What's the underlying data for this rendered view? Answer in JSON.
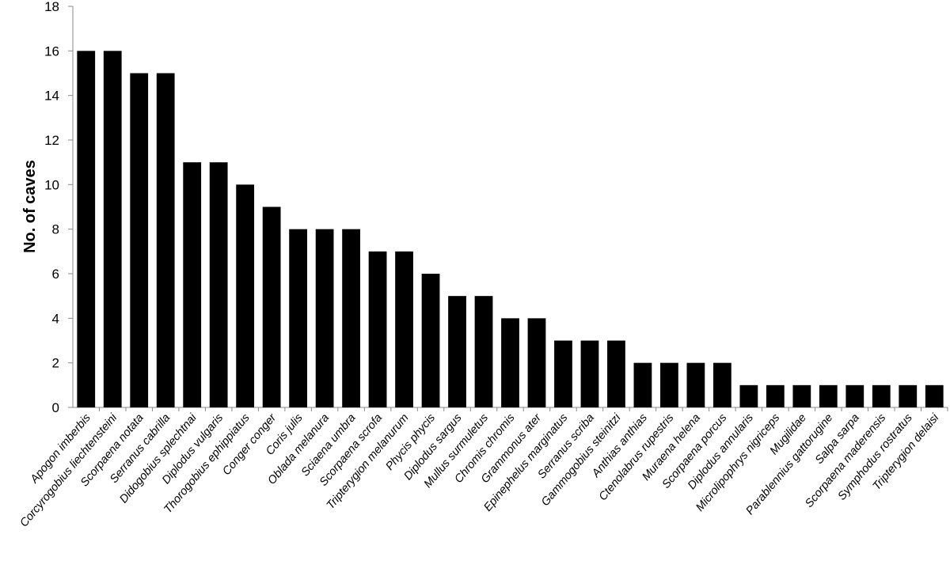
{
  "chart_data": {
    "type": "bar",
    "y_label": "No. of caves",
    "categories": [
      "Apogon imberbis",
      "Corcyrogobius liechtensteini",
      "Scorpaena notata",
      "Serranus cabrilla",
      "Didogobius splechtnai",
      "Diplodus vulgaris",
      "Thorogobius ephippiatus",
      "Conger conger",
      "Coris julis",
      "Oblada melanura",
      "Sciaena umbra",
      "Scorpaena scrofa",
      "Tripterygion melanurum",
      "Phycis phycis",
      "Diplodus sargus",
      "Mullus surmuletus",
      "Chromis chromis",
      "Grammonus ater",
      "Epinephelus marginatus",
      "Serranus scriba",
      "Gammogobius steinitzi",
      "Anthias anthias",
      "Ctenolabrus rupestris",
      "Muraena helena",
      "Scorpaena porcus",
      "Diplodus annularis",
      "Microlipophrys nigriceps",
      "Mugilidae",
      "Parablennius gattorugine",
      "Salpa sarpa",
      "Scorpaena maderensis",
      "Symphodus rostratus",
      "Tripterygion delaisi"
    ],
    "values": [
      16,
      16,
      15,
      15,
      11,
      11,
      10,
      9,
      8,
      8,
      8,
      7,
      7,
      6,
      5,
      5,
      4,
      4,
      3,
      3,
      3,
      2,
      2,
      2,
      2,
      1,
      1,
      1,
      1,
      1,
      1,
      1,
      1
    ],
    "color": "#000000",
    "ylim": [
      0,
      18
    ],
    "yticks": [
      0,
      2,
      4,
      6,
      8,
      10,
      12,
      14,
      16,
      18
    ],
    "grid": false
  }
}
